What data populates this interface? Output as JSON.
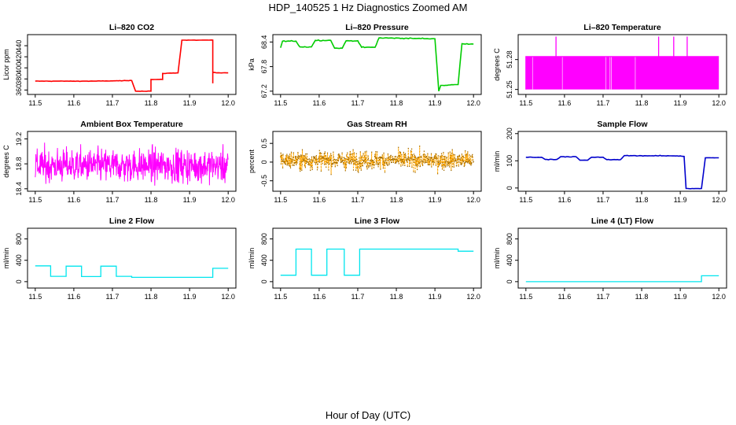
{
  "figure": {
    "title": "HDP_140525  1 Hz Diagnostics Zoomed AM",
    "xlabel": "Hour of Day (UTC)"
  },
  "chart_data": [
    {
      "type": "line",
      "title": "Li–820 CO2",
      "ylabel": "Licor ppm",
      "color": "#ff0000",
      "xlim": [
        11.48,
        12.02
      ],
      "ylim": [
        352,
        460
      ],
      "xticks": [
        "11.5",
        "11.6",
        "11.7",
        "11.8",
        "11.9",
        "12.0"
      ],
      "yticks": [
        "360",
        "380",
        "400",
        "420",
        "440"
      ],
      "noise": 0.6,
      "x": [
        11.5,
        11.55,
        11.6,
        11.65,
        11.7,
        11.75,
        11.76,
        11.8,
        11.8,
        11.83,
        11.83,
        11.87,
        11.88,
        11.95,
        11.96,
        11.96,
        11.96,
        11.97,
        12.0
      ],
      "y": [
        376,
        376,
        376,
        376,
        376.5,
        377,
        358,
        358,
        379,
        379,
        390,
        391,
        450,
        450,
        450,
        372,
        392,
        391,
        391
      ]
    },
    {
      "type": "line",
      "title": "Li–820 Pressure",
      "ylabel": "kPa",
      "color": "#00cc00",
      "xlim": [
        11.48,
        12.02
      ],
      "ylim": [
        67.12,
        68.58
      ],
      "xticks": [
        "11.5",
        "11.6",
        "11.7",
        "11.8",
        "11.9",
        "12.0"
      ],
      "yticks": [
        "67.2",
        "67.8",
        "68.4"
      ],
      "noise": 0.015,
      "x": [
        11.5,
        11.505,
        11.54,
        11.55,
        11.58,
        11.59,
        11.63,
        11.64,
        11.66,
        11.67,
        11.7,
        11.71,
        11.745,
        11.755,
        11.9,
        11.91,
        11.915,
        11.92,
        11.955,
        11.96,
        11.97,
        12.0
      ],
      "y": [
        68.26,
        68.42,
        68.42,
        68.28,
        68.28,
        68.44,
        68.44,
        68.25,
        68.25,
        68.43,
        68.43,
        68.27,
        68.27,
        68.5,
        68.48,
        67.2,
        67.34,
        67.34,
        67.36,
        67.36,
        68.36,
        68.35
      ]
    },
    {
      "type": "line",
      "title": "Li–820 Temperature",
      "ylabel": "degrees C",
      "color": "#ff00ff",
      "xlim": [
        11.48,
        12.02
      ],
      "ylim": [
        51.245,
        51.305
      ],
      "xticks": [
        "11.5",
        "11.6",
        "11.7",
        "11.8",
        "11.9",
        "12.0"
      ],
      "yticks": [
        "51.25",
        "51.28"
      ],
      "fill_band": [
        51.25,
        51.283
      ],
      "x": [
        11.5,
        11.5,
        11.578,
        11.578,
        11.578,
        11.844,
        11.844,
        11.844,
        11.883,
        11.883,
        11.883,
        11.918,
        11.918,
        11.918,
        12.0
      ],
      "y": [
        51.25,
        51.283,
        51.283,
        51.303,
        51.283,
        51.283,
        51.303,
        51.283,
        51.283,
        51.303,
        51.283,
        51.283,
        51.303,
        51.283,
        51.283
      ]
    },
    {
      "type": "line",
      "title": "Ambient Box Temperature",
      "ylabel": "degrees C",
      "color": "#ff00ff",
      "xlim": [
        11.48,
        12.02
      ],
      "ylim": [
        18.36,
        19.32
      ],
      "xticks": [
        "11.5",
        "11.6",
        "11.7",
        "11.8",
        "11.9",
        "12.0"
      ],
      "yticks": [
        "18.4",
        "18.8",
        "19.2"
      ],
      "band": [
        18.45,
        19.15
      ],
      "band_center": 18.77,
      "band_sigma": 0.19,
      "n": 600
    },
    {
      "type": "line",
      "title": "Gas Stream RH",
      "ylabel": "percent",
      "color": "#ffa500",
      "xlim": [
        11.48,
        12.02
      ],
      "ylim": [
        -0.78,
        0.82
      ],
      "xticks": [
        "11.5",
        "11.6",
        "11.7",
        "11.8",
        "11.9",
        "12.0"
      ],
      "yticks": [
        "-0.5",
        "0",
        "0.5"
      ],
      "band": [
        -0.6,
        0.7
      ],
      "band_center": 0.05,
      "band_sigma": 0.17,
      "n": 700,
      "dashed": true,
      "dots": true
    },
    {
      "type": "line",
      "title": "Sample Flow",
      "ylabel": "ml/min",
      "color": "#0000cc",
      "xlim": [
        11.48,
        12.02
      ],
      "ylim": [
        -12,
        208
      ],
      "xticks": [
        "11.5",
        "11.6",
        "11.7",
        "11.8",
        "11.9",
        "12.0"
      ],
      "yticks": [
        "0",
        "100",
        "200"
      ],
      "noise": 1.5,
      "x": [
        11.5,
        11.54,
        11.55,
        11.58,
        11.59,
        11.63,
        11.64,
        11.66,
        11.67,
        11.7,
        11.71,
        11.745,
        11.755,
        11.9,
        11.91,
        11.915,
        11.955,
        11.965,
        12.0
      ],
      "y": [
        113,
        113,
        105,
        105,
        115,
        115,
        102,
        102,
        113,
        113,
        104,
        104,
        119,
        118,
        116,
        -2,
        -2,
        111,
        111
      ]
    },
    {
      "type": "line",
      "title": "Line 2 Flow",
      "ylabel": "ml/min",
      "color": "#00e5ee",
      "xlim": [
        11.48,
        12.02
      ],
      "ylim": [
        -120,
        1000
      ],
      "xticks": [
        "11.5",
        "11.6",
        "11.7",
        "11.8",
        "11.9",
        "12.0"
      ],
      "yticks": [
        "0",
        "400",
        "800"
      ],
      "x": [
        11.5,
        11.54,
        11.54,
        11.58,
        11.58,
        11.62,
        11.62,
        11.67,
        11.67,
        11.71,
        11.71,
        11.75,
        11.75,
        11.96,
        11.96,
        12.0
      ],
      "y": [
        295,
        295,
        100,
        100,
        290,
        290,
        95,
        95,
        290,
        290,
        100,
        100,
        80,
        80,
        250,
        250
      ]
    },
    {
      "type": "line",
      "title": "Line 3 Flow",
      "ylabel": "ml/min",
      "color": "#00e5ee",
      "xlim": [
        11.48,
        12.02
      ],
      "ylim": [
        -120,
        1000
      ],
      "xticks": [
        "11.5",
        "11.6",
        "11.7",
        "11.8",
        "11.9",
        "12.0"
      ],
      "yticks": [
        "0",
        "400",
        "800"
      ],
      "x": [
        11.5,
        11.54,
        11.54,
        11.58,
        11.58,
        11.62,
        11.62,
        11.665,
        11.665,
        11.705,
        11.705,
        11.96,
        11.96,
        12.0
      ],
      "y": [
        120,
        120,
        610,
        610,
        120,
        120,
        610,
        610,
        120,
        120,
        610,
        610,
        570,
        570
      ]
    },
    {
      "type": "line",
      "title": "Line 4 (LT) Flow",
      "ylabel": "ml/min",
      "color": "#00e5ee",
      "xlim": [
        11.48,
        12.02
      ],
      "ylim": [
        -120,
        1000
      ],
      "xticks": [
        "11.5",
        "11.6",
        "11.7",
        "11.8",
        "11.9",
        "12.0"
      ],
      "yticks": [
        "0",
        "400",
        "800"
      ],
      "x": [
        11.5,
        11.955,
        11.955,
        12.0
      ],
      "y": [
        0,
        0,
        110,
        110
      ]
    }
  ]
}
